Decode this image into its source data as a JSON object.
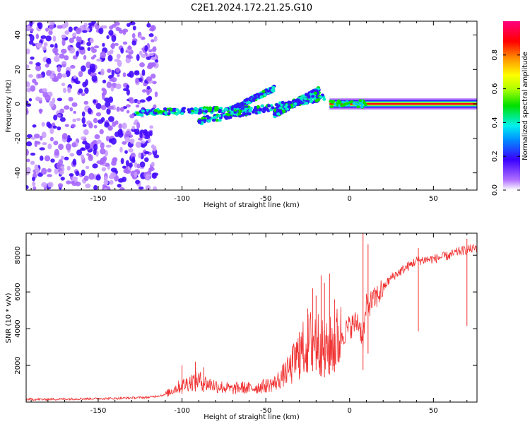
{
  "title": "C2E1.2024.172.21.25.G10",
  "chart_data": [
    {
      "type": "heatmap",
      "xlabel": "Height of straight line (km)",
      "ylabel": "Frequency (Hz)",
      "xlim": [
        -193,
        76
      ],
      "ylim": [
        -50,
        48
      ],
      "xticks": [
        -150,
        -100,
        -50,
        0,
        50
      ],
      "yticks": [
        -40,
        -20,
        0,
        20,
        40
      ],
      "colorbar": {
        "label": "Normalized spectral amplitude",
        "range": [
          0,
          1
        ],
        "ticks": [
          "0.0",
          "0.2",
          "0.4",
          "0.6",
          "0.8"
        ],
        "tick_values": [
          0.0,
          0.2,
          0.4,
          0.6,
          0.8
        ],
        "colormap": "rainbow (white-violet-blue-cyan-green-yellow-orange-red-magenta)"
      },
      "regions": [
        {
          "name": "scattered noise",
          "x_range": [
            -193,
            -115
          ],
          "freq_range": [
            -50,
            48
          ],
          "amplitude": 0.05
        },
        {
          "name": "ascending tracks",
          "x_range": [
            -128,
            -15
          ],
          "freq_from": [
            -8,
            -3
          ],
          "freq_to": [
            -1,
            7
          ],
          "amplitude": 0.35
        },
        {
          "name": "carrier line",
          "x_range": [
            -12,
            76
          ],
          "freq": 0,
          "amplitude": 0.9
        }
      ],
      "grid": false
    },
    {
      "type": "line",
      "xlabel": "Height of straight line (km)",
      "ylabel": "SNR (10 * v/v)",
      "xlim": [
        -193,
        76
      ],
      "ylim": [
        0,
        9200
      ],
      "xticks": [
        -150,
        -100,
        -50,
        0,
        50
      ],
      "yticks": [
        2000,
        4000,
        6000,
        8000
      ],
      "color": "#f03030",
      "x": [
        -193,
        -180,
        -160,
        -140,
        -120,
        -110,
        -105,
        -100,
        -95,
        -90,
        -85,
        -80,
        -75,
        -70,
        -65,
        -60,
        -55,
        -50,
        -45,
        -40,
        -35,
        -30,
        -25,
        -20,
        -15,
        -10,
        -5,
        0,
        5,
        8,
        10,
        15,
        20,
        25,
        30,
        35,
        40,
        45,
        50,
        55,
        60,
        65,
        70,
        76
      ],
      "y": [
        150,
        150,
        180,
        200,
        260,
        400,
        700,
        900,
        1100,
        1200,
        1000,
        900,
        800,
        700,
        800,
        750,
        800,
        900,
        1000,
        1400,
        1900,
        2600,
        3200,
        3500,
        2700,
        3200,
        3600,
        4100,
        4400,
        3500,
        5200,
        5600,
        6200,
        6800,
        7100,
        7400,
        7700,
        7750,
        7800,
        7900,
        8000,
        8200,
        8300,
        8400
      ],
      "spikes": [
        {
          "x": -100,
          "y": 2000
        },
        {
          "x": -92,
          "y": 2200
        },
        {
          "x": -87,
          "y": 1900
        },
        {
          "x": -30,
          "y": 3800
        },
        {
          "x": -25,
          "y": 5100
        },
        {
          "x": -22,
          "y": 6200
        },
        {
          "x": -20,
          "y": 5800
        },
        {
          "x": -17,
          "y": 6900
        },
        {
          "x": -15,
          "y": 6500
        },
        {
          "x": -12,
          "y": 7000
        },
        {
          "x": -9,
          "y": 5600
        },
        {
          "x": 8,
          "y": 9200
        },
        {
          "x": 11,
          "y": 8600
        },
        {
          "x": 41,
          "y": 8400
        },
        {
          "x": 70,
          "y": 8900
        }
      ],
      "grid": false
    }
  ]
}
